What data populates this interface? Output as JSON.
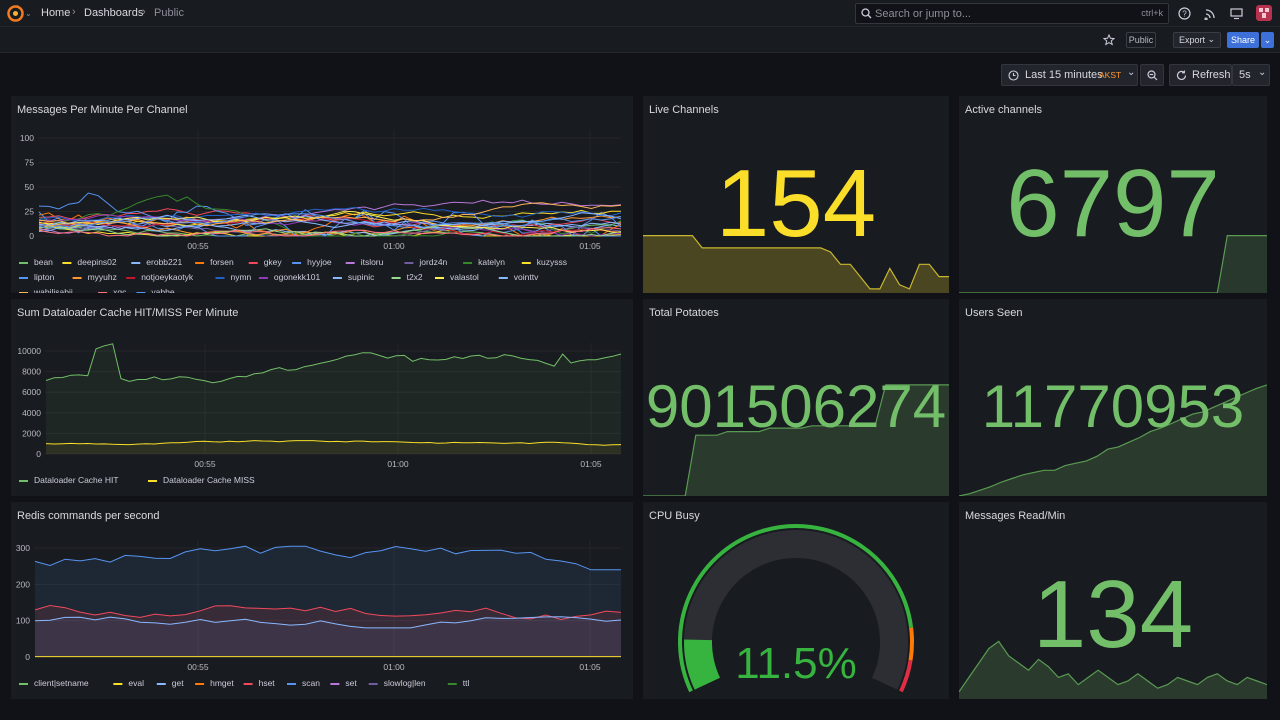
{
  "topbar": {
    "breadcrumbs": [
      "Home",
      "Dashboards",
      "Public"
    ],
    "search_placeholder": "Search or jump to...",
    "search_shortcut": "ctrl+k"
  },
  "toolbar": {
    "public_label": "Public",
    "export_label": "Export",
    "share_label": "Share",
    "time_range": "Last 15 minutes",
    "timezone": "AKST",
    "refresh_label": "Refresh",
    "refresh_interval": "5s"
  },
  "colors": {
    "accent_blue": "#3d71d9",
    "stat_green": "#73bf69",
    "stat_yellow": "#fade2a",
    "gauge_green": "#37b33f",
    "gauge_red": "#e02f44",
    "gauge_orange": "#ff780a"
  },
  "panels": {
    "msgs": {
      "title": "Messages Per Minute Per Channel",
      "y_ticks": [
        "100",
        "75",
        "50",
        "25",
        "0"
      ],
      "x_ticks": [
        "00:55",
        "01:00",
        "01:05"
      ],
      "legend": [
        {
          "name": "bean",
          "color": "#73bf69"
        },
        {
          "name": "deepins02",
          "color": "#fade2a"
        },
        {
          "name": "erobb221",
          "color": "#8ab8ff"
        },
        {
          "name": "forsen",
          "color": "#ff780a"
        },
        {
          "name": "gkey",
          "color": "#f2495c"
        },
        {
          "name": "hyyjoe",
          "color": "#5794f2"
        },
        {
          "name": "itsloru",
          "color": "#b877d9"
        },
        {
          "name": "jordz4n",
          "color": "#705da0"
        },
        {
          "name": "katelyn",
          "color": "#37872d"
        },
        {
          "name": "kuzysss",
          "color": "#fade2a"
        },
        {
          "name": "lipton",
          "color": "#5794f2"
        },
        {
          "name": "myyuhz",
          "color": "#ff9830"
        },
        {
          "name": "notjoeykaotyk",
          "color": "#c4162a"
        },
        {
          "name": "nymn",
          "color": "#1f60c4"
        },
        {
          "name": "ogonekk101",
          "color": "#8f3bb8"
        },
        {
          "name": "supinic",
          "color": "#8ab8ff"
        },
        {
          "name": "t2x2",
          "color": "#96d98d"
        },
        {
          "name": "valastol",
          "color": "#ffee52"
        },
        {
          "name": "vointtv",
          "color": "#8ab8ff"
        },
        {
          "name": "wabilisabii",
          "color": "#ffb357"
        },
        {
          "name": "xqc",
          "color": "#ff7383"
        },
        {
          "name": "yabbe",
          "color": "#5794f2"
        }
      ]
    },
    "live": {
      "title": "Live Channels",
      "value": "154"
    },
    "active": {
      "title": "Active channels",
      "value": "6797"
    },
    "cache": {
      "title": "Sum Dataloader Cache HIT/MISS Per Minute",
      "y_ticks": [
        "10000",
        "8000",
        "6000",
        "4000",
        "2000",
        "0"
      ],
      "x_ticks": [
        "00:55",
        "01:00",
        "01:05"
      ],
      "legend": [
        {
          "name": "Dataloader Cache HIT",
          "color": "#73bf69"
        },
        {
          "name": "Dataloader Cache MISS",
          "color": "#fade2a"
        }
      ]
    },
    "potatoes": {
      "title": "Total Potatoes",
      "value": "901506274"
    },
    "users": {
      "title": "Users Seen",
      "value": "11770953"
    },
    "redis": {
      "title": "Redis commands per second",
      "y_ticks": [
        "300",
        "200",
        "100",
        "0"
      ],
      "x_ticks": [
        "00:55",
        "01:00",
        "01:05"
      ],
      "legend": [
        {
          "name": "client|setname",
          "color": "#73bf69"
        },
        {
          "name": "eval",
          "color": "#fade2a"
        },
        {
          "name": "get",
          "color": "#8ab8ff"
        },
        {
          "name": "hmget",
          "color": "#ff780a"
        },
        {
          "name": "hset",
          "color": "#f2495c"
        },
        {
          "name": "scan",
          "color": "#5794f2"
        },
        {
          "name": "set",
          "color": "#b877d9"
        },
        {
          "name": "slowlog|len",
          "color": "#705da0"
        },
        {
          "name": "ttl",
          "color": "#37872d"
        }
      ]
    },
    "cpu": {
      "title": "CPU Busy",
      "value": "11.5%",
      "percent": 11.5
    },
    "readmin": {
      "title": "Messages Read/Min",
      "value": "134"
    }
  }
}
